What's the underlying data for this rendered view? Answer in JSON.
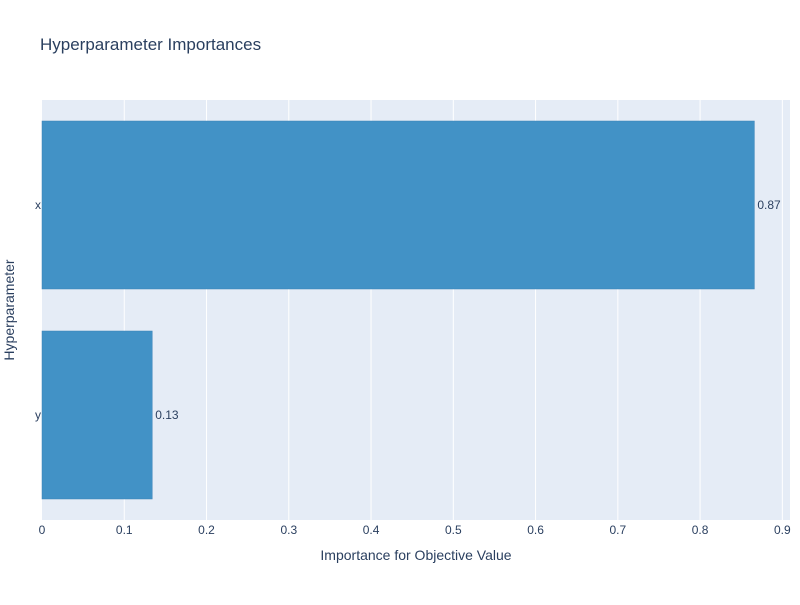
{
  "chart_data": {
    "type": "bar",
    "orientation": "horizontal",
    "title": "Hyperparameter Importances",
    "xlabel": "Importance for Objective Value",
    "ylabel": "Hyperparameter",
    "categories": [
      "y",
      "x"
    ],
    "values": [
      0.134,
      0.866
    ],
    "value_labels": [
      "0.13",
      "0.87"
    ],
    "xlim": [
      0,
      0.9093
    ],
    "xticks": [
      0,
      0.1,
      0.2,
      0.3,
      0.4,
      0.5,
      0.6,
      0.7,
      0.8,
      0.9
    ],
    "xtick_labels": [
      "0",
      "0.1",
      "0.2",
      "0.3",
      "0.4",
      "0.5",
      "0.6",
      "0.7",
      "0.8",
      "0.9"
    ],
    "grid": true,
    "legend": "none",
    "colors": {
      "bar": "#4292c6",
      "bar_outline": "#3a82b8",
      "plot_background": "#e5ecf6",
      "grid": "#ffffff",
      "text": "#2a3f5f"
    }
  }
}
